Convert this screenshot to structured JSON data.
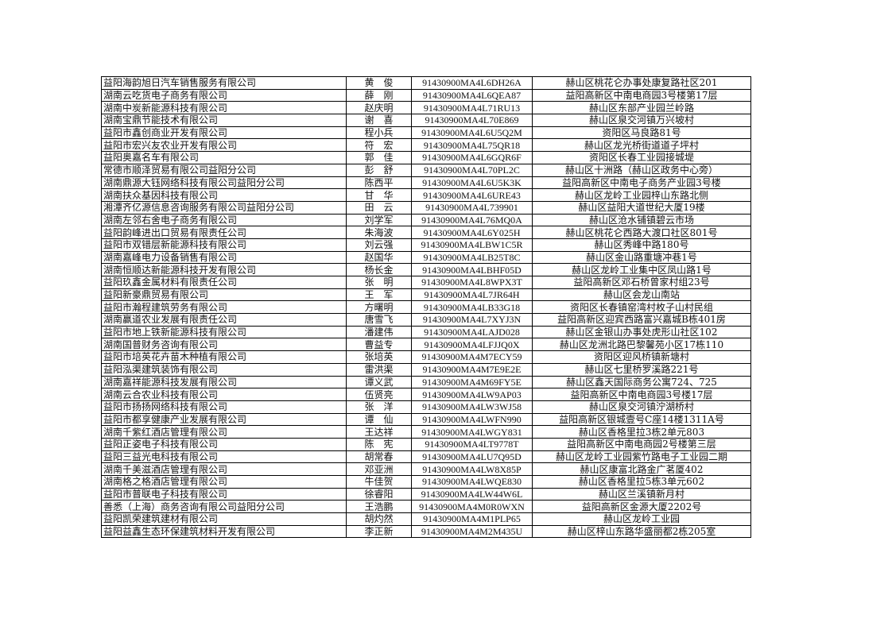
{
  "rows": [
    [
      "益阳海韵旭日汽车销售服务有限公司",
      "黄　俊",
      "91430900MA4L6DH26A",
      "赫山区桃花仑办事处康复路社区201"
    ],
    [
      "湖南云吃货电子商务有限公司",
      "薛　刚",
      "91430900MA4L6QEA87",
      "益阳高新区中南电商园3号楼第17层"
    ],
    [
      "湖南中炭新能源科技有限公司",
      "赵庆明",
      "91430900MA4L71RU13",
      "赫山区东部产业园兰岭路"
    ],
    [
      "湖南宝鼎节能技术有限公司",
      "谢　喜",
      "91430900MA4L70E869",
      "赫山区泉交河镇万兴坡村"
    ],
    [
      "益阳市鑫创商业开发有限公司",
      "程小兵",
      "91430900MA4L6U5Q2M",
      "资阳区马良路81号"
    ],
    [
      "益阳市宏兴友农业开发有限公司",
      "符　宏",
      "91430900MA4L75QR18",
      "赫山区龙光桥街道道子坪村"
    ],
    [
      "益阳奥嘉名车有限公司",
      "郭　佳",
      "91430900MA4L6GQR6F",
      "资阳区长春工业园接城堤"
    ],
    [
      "常德市顺泽贸易有限公司益阳分公司",
      "彭　舒",
      "91430900MA4L70PL2C",
      "赫山区十洲路（赫山区政务中心旁）"
    ],
    [
      "湖南鼎源大钰网络科技有限公司益阳分公司",
      "陈西平",
      "91430900MA4L6U5K3K",
      "益阳高新区中南电子商务产业园3号楼"
    ],
    [
      "湖南扶众基因科技有限公司",
      "甘　华",
      "91430900MA4L6URE43",
      "赫山区龙岭工业园梓山东路北侧"
    ],
    [
      "湘潭齐亿源信息咨询服务有限公司益阳分公司",
      "田　云",
      "91430900MA4L739901",
      "赫山区益阳大道世纪大厦19楼"
    ],
    [
      "湖南左邻右舍电子商务有限公司",
      "刘学军",
      "91430900MA4L76MQ0A",
      "赫山区沧水铺镇碧云市场"
    ],
    [
      "益阳韵峰进出口贸易有限责任公司",
      "朱海波",
      "91430900MA4L6Y025H",
      "赫山区桃花仑西路大渡口社区801号"
    ],
    [
      "益阳市双错层新能源科技有限公司",
      "刘云强",
      "91430900MA4LBW1C5R",
      "赫山区秀峰中路180号"
    ],
    [
      "湖南嘉峰电力设备销售有限公司",
      "赵国华",
      "91430900MA4LB25T8C",
      "赫山区金山路重塘冲巷1号"
    ],
    [
      "湖南恒顺达新能源科技开发有限公司",
      "杨长金",
      "91430900MA4LBHF05D",
      "赫山区龙岭工业集中区凤山路1号"
    ],
    [
      "益阳玖鑫金属材料有限责任公司",
      "张　明",
      "91430900MA4L8WPX3T",
      "益阳高新区邓石桥曾家村组23号"
    ],
    [
      "益阳新豪鼎贸易有限公司",
      "王　军",
      "91430900MA4L7JR64H",
      "赫山区会龙山南站"
    ],
    [
      "益阳市瀚程建筑劳务有限公司",
      "方曙明",
      "91430900MA4LB33G18",
      "资阳区长春镇窑湾村枚子山村民组"
    ],
    [
      "湖南赢道农业发展有限责任公司",
      "唐雪飞",
      "91430900MA4L7XYJ3N",
      "益阳高新区迎宾西路富兴嘉城B栋401房"
    ],
    [
      "益阳市地上铁新能源科技有限公司",
      "潘建伟",
      "91430900MA4LAJD028",
      "赫山区金银山办事处虎形山社区102"
    ],
    [
      "湖南国普财务咨询有限公司",
      "曹益专",
      "91430900MA4LFJJQ0X",
      "赫山区龙洲北路巴黎馨苑小区17栋110"
    ],
    [
      "益阳市培英花卉苗木种植有限公司",
      "张培英",
      "91430900MA4M7ECY59",
      "资阳区迎风桥镇新塘村"
    ],
    [
      "益阳泓渠建筑装饰有限公司",
      "雷洪渠",
      "91430900MA4M7E9E2E",
      "赫山区七里桥罗溪路221号"
    ],
    [
      "湖南嘉祥能源科技发展有限公司",
      "谭义武",
      "91430900MA4M69FY5E",
      "赫山区鑫天国际商务公寓724、725"
    ],
    [
      "湖南云合农业科技有限公司",
      "伍贤亮",
      "91430900MA4LW9AP03",
      "益阳高新区中南电商园3号楼17层"
    ],
    [
      "益阳市扬扬网络科技有限公司",
      "张　洋",
      "91430900MA4LW3WJ58",
      "赫山区泉交河镇泞湖桥村"
    ],
    [
      "益阳市都享健康产业发展有限公司",
      "谭　仙",
      "91430900MA4LWFN990",
      "益阳高新区银城壹号C座14楼1311A号"
    ],
    [
      "湖南千紫红酒店管理有限公司",
      "王达祥",
      "91430900MA4LWGY831",
      "赫山区香格里拉3栋2单元803"
    ],
    [
      "益阳正姿电子科技有限公司",
      "陈　宪",
      "91430900MA4LT9778T",
      "益阳高新区中南电商园2号楼第三层"
    ],
    [
      "益阳三益光电科技有限公司",
      "胡常春",
      "91430900MA4LU7Q95D",
      "赫山区龙岭工业园紫竹路电子工业园二期"
    ],
    [
      "湖南千美滋酒店管理有限公司",
      "邓亚洲",
      "91430900MA4LW8X85P",
      "赫山区康富北路金广茗厦402"
    ],
    [
      "湖南格之格酒店管理有限公司",
      "牛佳贺",
      "91430900MA4LWQE830",
      "赫山区香格里拉5栋3单元602"
    ],
    [
      "益阳市普联电子科技有限公司",
      "徐睿阳",
      "91430900MA4LW44W6L",
      "赫山区兰溪镇新月村"
    ],
    [
      "善悉（上海）商务咨询有限公司益阳分公司",
      "王浩鹏",
      "91430900MA4M0R0WXN",
      "益阳高新区金源大厦2202号"
    ],
    [
      "益阳凯荣建筑建材有限公司",
      "胡灼然",
      "91430900MA4M1PLP65",
      "赫山区龙岭工业园"
    ],
    [
      "益阳益鑫生态环保建筑材料开发有限公司",
      "李正新",
      "91430900MA4M2M435U",
      "赫山区梓山东路华盛丽都2栋205室"
    ]
  ]
}
